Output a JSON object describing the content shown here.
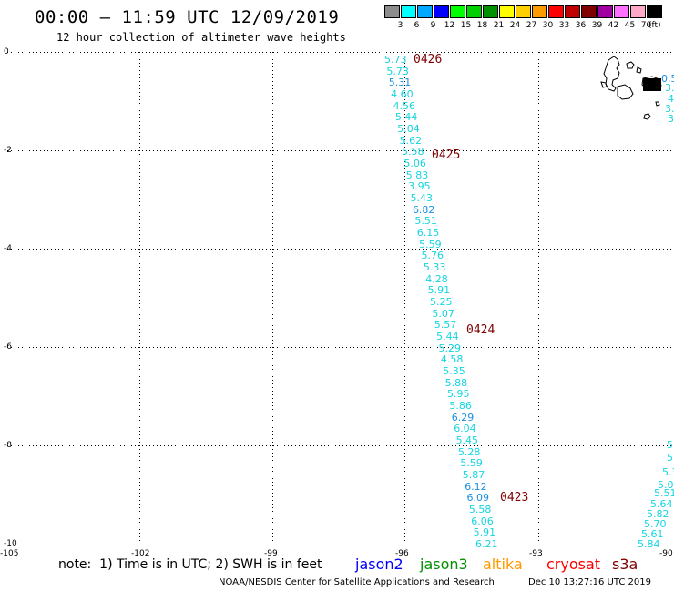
{
  "header": {
    "title": "00:00 — 11:59 UTC 12/09/2019",
    "subtitle": "12 hour collection of altimeter wave heights"
  },
  "legend": {
    "colors": [
      "#8c8c8c",
      "#00ffff",
      "#00a8ff",
      "#0000ff",
      "#00ff00",
      "#00d000",
      "#009000",
      "#ffff00",
      "#ffd000",
      "#ff9900",
      "#ff0000",
      "#c00000",
      "#800000",
      "#a000a0",
      "#ff70ff",
      "#ffa8c8",
      "#000000"
    ],
    "labels": [
      "3",
      "6",
      "9",
      "12",
      "15",
      "18",
      "21",
      "24",
      "27",
      "30",
      "33",
      "36",
      "39",
      "42",
      "45",
      "70"
    ],
    "unit": "(ft)"
  },
  "axes": {
    "y_labels": [
      "0",
      "-2",
      "-4",
      "-6",
      "-8",
      "-10"
    ],
    "x_labels": [
      "-105",
      "-102",
      "-99",
      "-96",
      "-93",
      "-90"
    ]
  },
  "note": "note:  1) Time is in UTC; 2) SWH is in feet",
  "satellites": [
    {
      "name": "jason2",
      "color": "#0000ff"
    },
    {
      "name": "jason3",
      "color": "#009000"
    },
    {
      "name": "altika",
      "color": "#ff9900"
    },
    {
      "name": "cryosat",
      "color": "#ff0000"
    },
    {
      "name": "s3a",
      "color": "#800000"
    }
  ],
  "footer": {
    "credit": "NOAA/NESDIS Center for Satellite Applications and Research",
    "timestamp": "Dec 10 13:27:16 UTC 2019"
  },
  "track_times": [
    "0426",
    "0425",
    "0424",
    "0423"
  ],
  "swh_values": [
    "5.73",
    "5.73",
    "5.31",
    "4.60",
    "4.56",
    "5.44",
    "5.04",
    "5.62",
    "5.58",
    "5.06",
    "5.83",
    "3.95",
    "5.43",
    "6.82",
    "5.51",
    "6.15",
    "5.59",
    "5.76",
    "5.33",
    "4.28",
    "5.91",
    "5.25",
    "5.07",
    "5.57",
    "5.44",
    "5.29",
    "4.58",
    "5.35",
    "5.88",
    "5.95",
    "5.86",
    "6.29",
    "6.04",
    "5.45",
    "5.28",
    "5.59",
    "5.87",
    "6.12",
    "6.09",
    "5.58",
    "6.06",
    "5.91",
    "6.21"
  ],
  "right_track_values": [
    "5.51",
    "5.64",
    "5.82",
    "5.70",
    "5.61",
    "5.84"
  ],
  "right_track_partial": [
    "5",
    "5",
    "5.3",
    "5.0"
  ],
  "island_values": [
    "0.5",
    "3.",
    "4",
    "3.",
    "3."
  ]
}
